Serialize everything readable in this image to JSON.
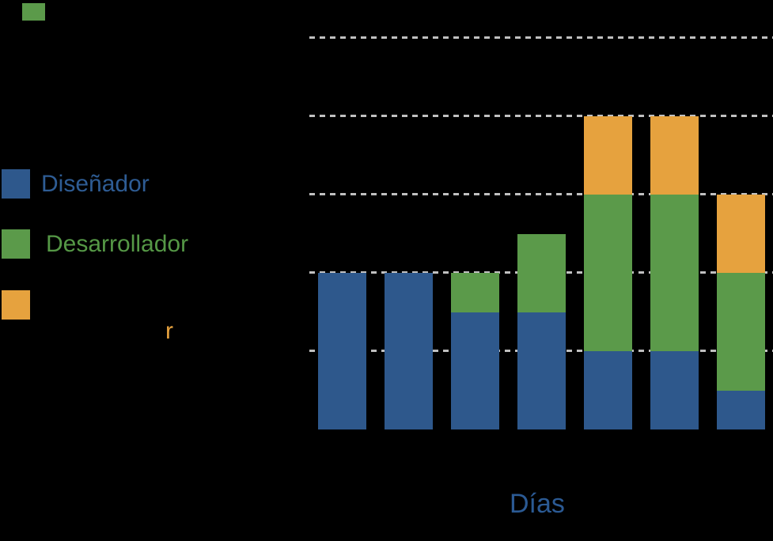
{
  "canvas": {
    "background_color": "#000000"
  },
  "decor": {
    "top_left_marker_color": "#5B9A4A"
  },
  "legend": {
    "position": "left",
    "items": [
      {
        "id": "disenador",
        "label": "Diseñador",
        "swatch_color": "#2E588C",
        "label_color": "#2E5C94"
      },
      {
        "id": "desarrollador",
        "label": "Desarrollador",
        "swatch_color": "#5B9A4A",
        "label_color": "#559846"
      },
      {
        "id": "orange-series",
        "label": "r",
        "swatch_color": "#E6A23E",
        "label_color": "#E6A23E"
      }
    ]
  },
  "chart_data": {
    "type": "bar",
    "stacked": true,
    "orientation": "vertical",
    "categories": [
      "",
      "",
      "",
      "",
      "",
      "",
      ""
    ],
    "series": [
      {
        "name": "Diseñador",
        "color": "#2E588C",
        "values": [
          2,
          2,
          1.5,
          1.5,
          1,
          1,
          0.5
        ]
      },
      {
        "name": "Desarrollador",
        "color": "#5B9A4A",
        "values": [
          0,
          0,
          0.5,
          1,
          2,
          2,
          1.5
        ]
      },
      {
        "name": "r",
        "color": "#E6A23E",
        "values": [
          0,
          0,
          0,
          0,
          1,
          1,
          1
        ]
      }
    ],
    "totals": [
      2,
      2,
      2,
      2.5,
      4,
      4,
      3
    ],
    "xlabel": "Días",
    "xlabel_color": "#2B5A94",
    "ylabel": "",
    "ylim": [
      0,
      5.5
    ],
    "gridline_values": [
      1,
      2,
      3,
      4,
      5
    ],
    "grid_style": "dashed",
    "grid_color": "#C0C0C0",
    "x_tick_labels_visible": false,
    "y_tick_labels_visible": false,
    "legend_position": "left"
  }
}
